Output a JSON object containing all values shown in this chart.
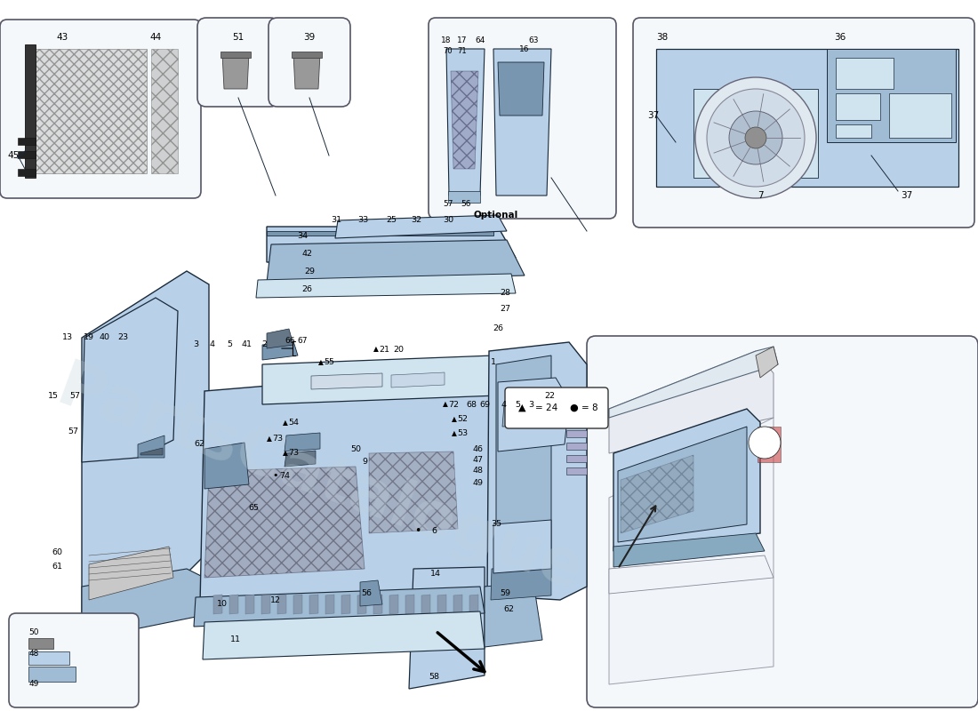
{
  "bg_color": "#ffffff",
  "panel_blue_light": "#b8d0e8",
  "panel_blue_mid": "#a0bcd4",
  "panel_blue_dark": "#7896b0",
  "panel_blue_very_light": "#d0e4f0",
  "border_dark": "#1a2a3a",
  "border_mid": "#445566",
  "hatch_bg": "#808090",
  "box_bg": "#f5f8fa",
  "box_edge": "#555566",
  "text_fs": 7.0,
  "watermark": "PartsCatalogue",
  "watermark_color": "#c0d0dc"
}
